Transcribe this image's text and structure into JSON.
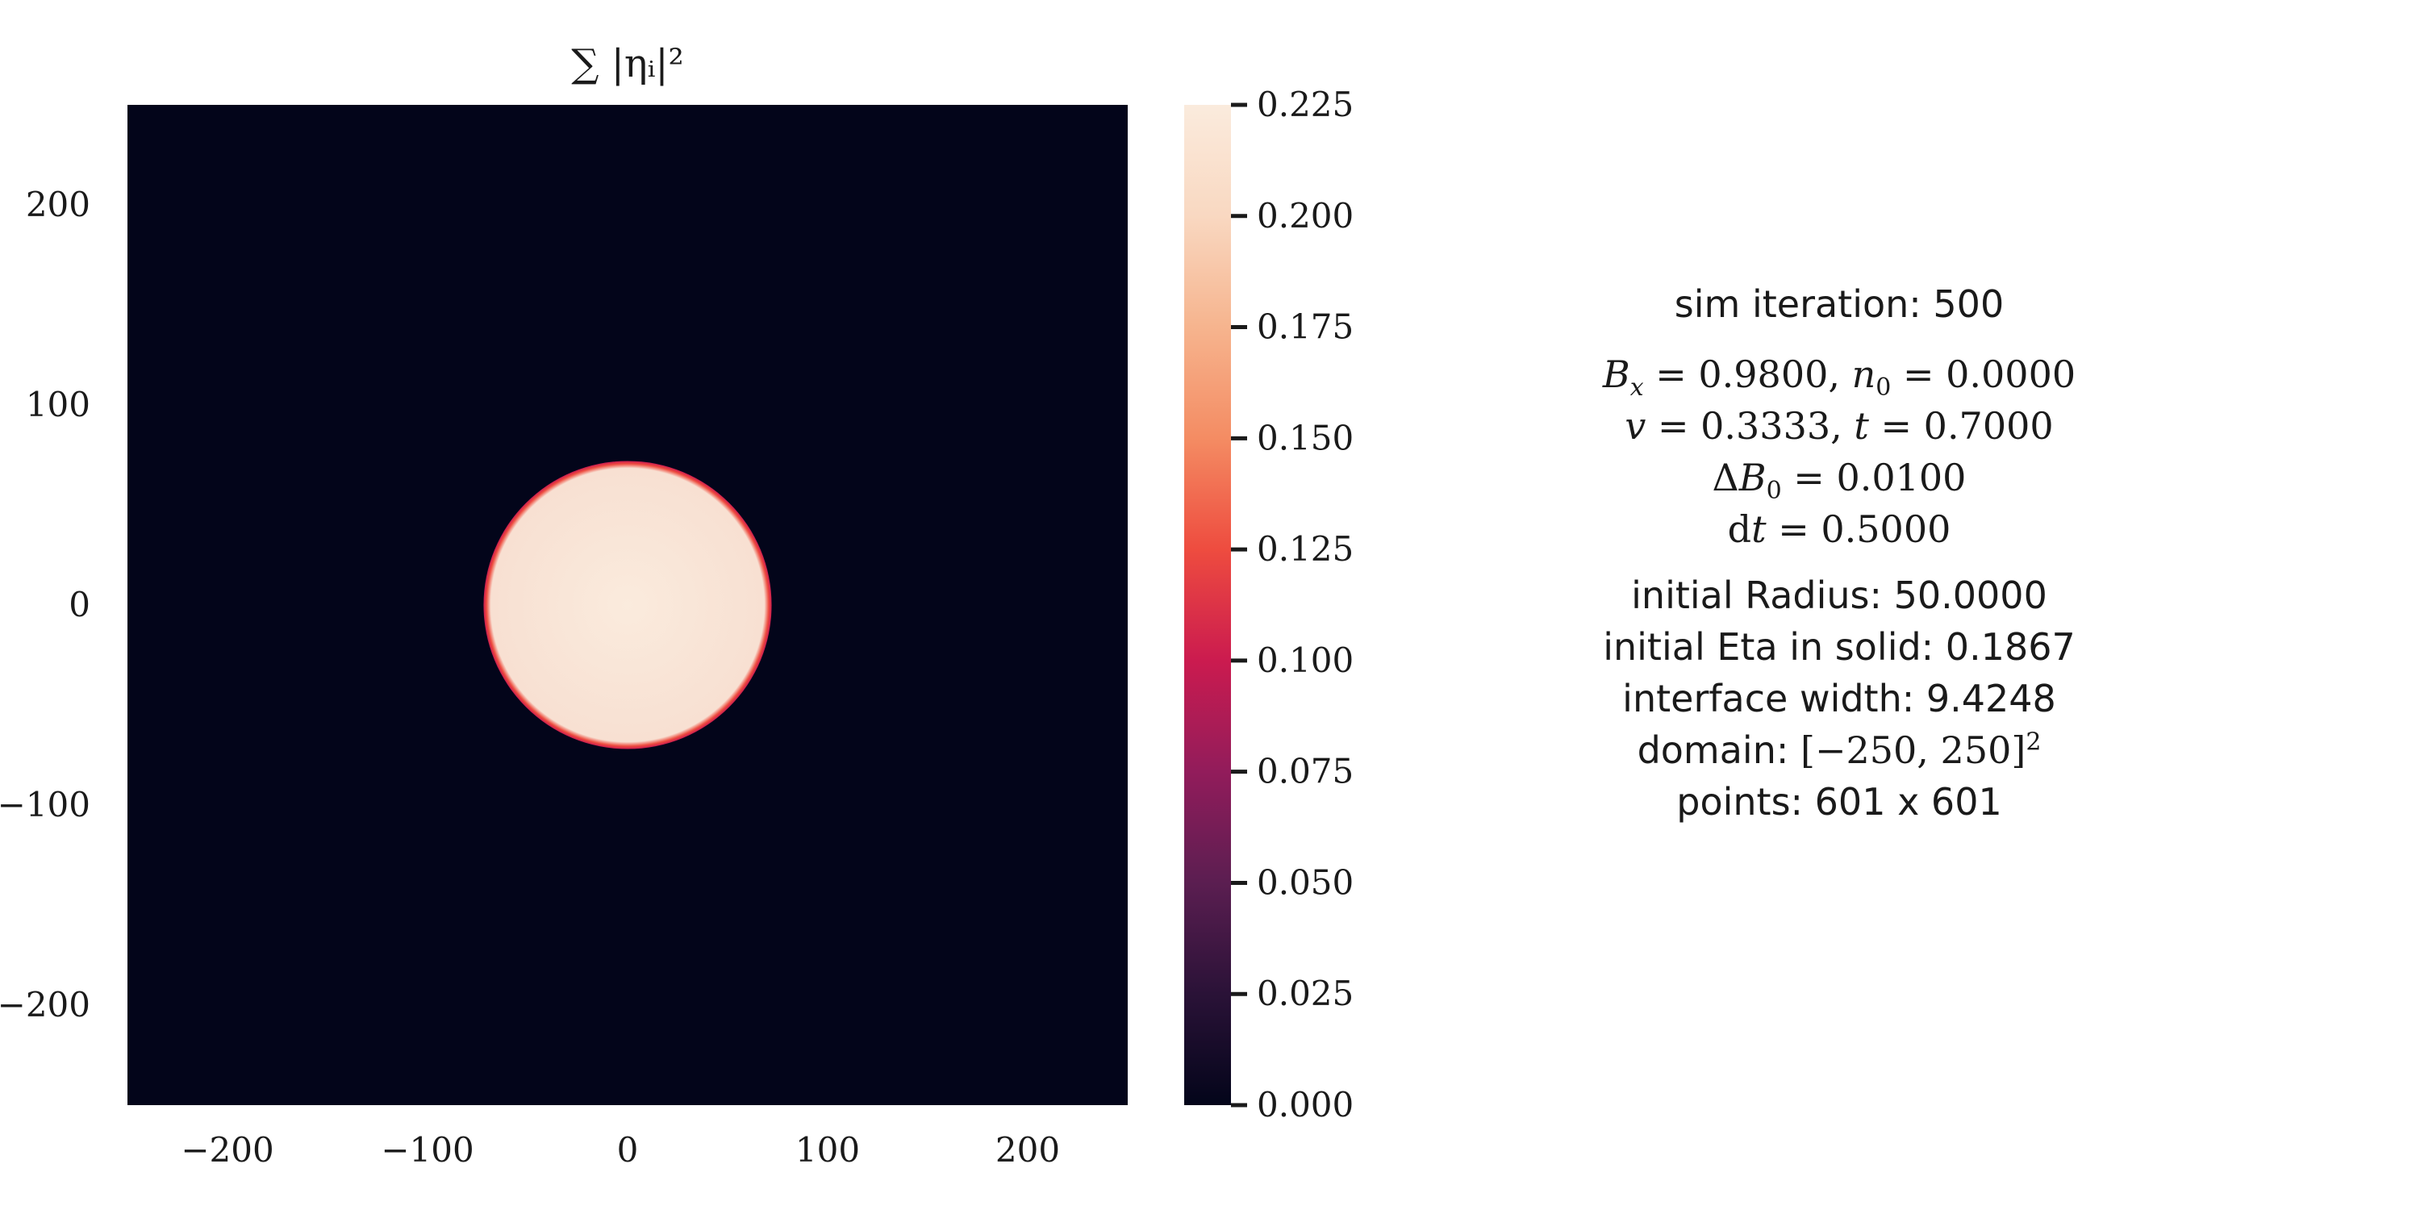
{
  "chart_data": {
    "type": "heatmap",
    "title": "∑ |ηᵢ|²",
    "xlim": [
      -250,
      250
    ],
    "ylim": [
      -250,
      250
    ],
    "x_ticks": [
      -200,
      -100,
      0,
      100,
      200
    ],
    "y_ticks": [
      -200,
      -100,
      0,
      100,
      200
    ],
    "x_tick_labels": [
      "−200",
      "−100",
      "0",
      "100",
      "200"
    ],
    "y_tick_labels": [
      "−200",
      "−100",
      "0",
      "100",
      "200"
    ],
    "field": {
      "shape": "circle",
      "center": [
        0,
        0
      ],
      "radius": 72,
      "value_inside": 0.22,
      "value_outside": 0.0,
      "edge_value": 0.14
    },
    "colorbar": {
      "range": [
        0.0,
        0.225
      ],
      "ticks": [
        0.0,
        0.025,
        0.05,
        0.075,
        0.1,
        0.125,
        0.15,
        0.175,
        0.2,
        0.225
      ],
      "tick_labels": [
        "0.000",
        "0.025",
        "0.050",
        "0.075",
        "0.100",
        "0.125",
        "0.150",
        "0.175",
        "0.200",
        "0.225"
      ],
      "colormap": "rocket",
      "colors": [
        "#03051a",
        "#2a1237",
        "#5b1e51",
        "#921c5b",
        "#cb1b4f",
        "#ee4c3f",
        "#f48c63",
        "#f6b48e",
        "#f9d8c1",
        "#faebdd"
      ]
    },
    "grid": false
  },
  "params": {
    "iteration_text": "sim iteration: 500",
    "b_x": "0.9800",
    "n_0": "0.0000",
    "v": "0.3333",
    "t": "0.7000",
    "delta_b0": "0.0100",
    "dt": "0.5000",
    "radius_text": "initial Radius: 50.0000",
    "eta_text": "initial Eta in solid: 0.1867",
    "width_text": "interface width: 9.4248",
    "domain_label": "domain: ",
    "domain_low": "−250",
    "domain_high": "250",
    "points_text": "points: 601 x 601"
  }
}
